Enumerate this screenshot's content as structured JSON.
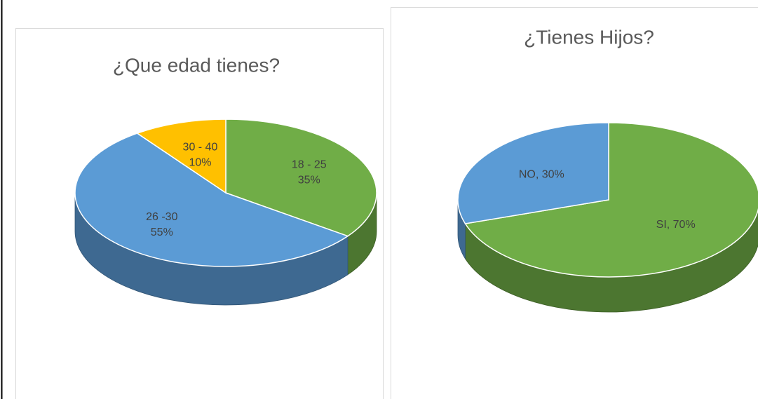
{
  "chart_data": [
    {
      "type": "pie",
      "title": "¿Que edad tienes?",
      "categories": [
        "18 - 25",
        "26 -30",
        "30 - 40"
      ],
      "values": [
        35,
        55,
        10
      ],
      "value_labels": [
        "35%",
        "55%",
        "10%"
      ],
      "colors": [
        "#70ad47",
        "#5b9bd5",
        "#ffc000"
      ]
    },
    {
      "type": "pie",
      "title": "¿Tienes Hijos?",
      "categories": [
        "SI",
        "NO"
      ],
      "values": [
        70,
        30
      ],
      "value_labels": [
        "SI, 70%",
        "NO, 30%"
      ],
      "colors": [
        "#70ad47",
        "#5b9bd5"
      ]
    }
  ]
}
